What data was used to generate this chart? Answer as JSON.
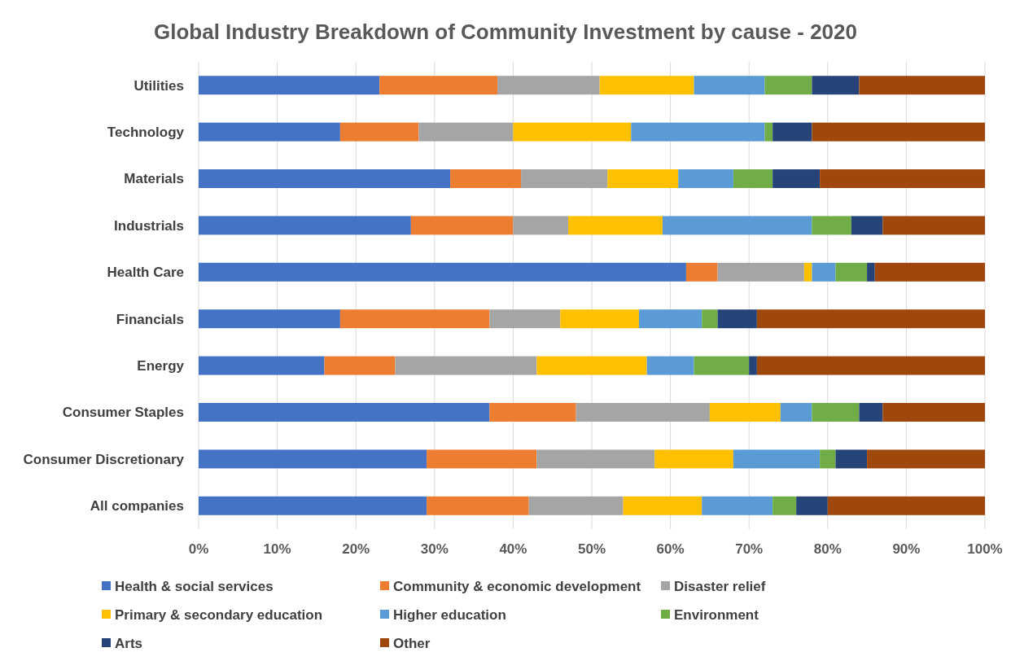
{
  "chart_data": {
    "type": "bar",
    "orientation": "horizontal",
    "stacked": true,
    "title": "Global Industry Breakdown of Community Investment by cause - 2020",
    "categories": [
      "Utilities",
      "Technology",
      "Materials",
      "Industrials",
      "Health Care",
      "Financials",
      "Energy",
      "Consumer Staples",
      "Consumer Discretionary",
      "All companies"
    ],
    "series": [
      {
        "name": "Health & social services",
        "color": "#4472c4",
        "values": [
          23,
          18,
          32,
          27,
          62,
          18,
          16,
          37,
          29,
          29
        ]
      },
      {
        "name": "Community & economic development",
        "color": "#ed7d31",
        "values": [
          15,
          10,
          9,
          13,
          4,
          19,
          9,
          11,
          14,
          13
        ]
      },
      {
        "name": "Disaster relief",
        "color": "#a5a5a5",
        "values": [
          13,
          12,
          11,
          7,
          11,
          9,
          18,
          17,
          15,
          12
        ]
      },
      {
        "name": "Primary & secondary education",
        "color": "#ffc000",
        "values": [
          12,
          15,
          9,
          12,
          1,
          10,
          14,
          9,
          10,
          10
        ]
      },
      {
        "name": "Higher education",
        "color": "#5b9bd5",
        "values": [
          9,
          17,
          7,
          19,
          3,
          8,
          6,
          4,
          11,
          9
        ]
      },
      {
        "name": "Environment",
        "color": "#70ad47",
        "values": [
          6,
          1,
          5,
          5,
          4,
          2,
          7,
          6,
          2,
          3
        ]
      },
      {
        "name": "Arts",
        "color": "#264478",
        "values": [
          6,
          5,
          6,
          4,
          1,
          5,
          1,
          3,
          4,
          4
        ]
      },
      {
        "name": "Other",
        "color": "#9e480e",
        "values": [
          16,
          22,
          21,
          13,
          14,
          29,
          29,
          13,
          15,
          20
        ]
      }
    ],
    "xlim": [
      0,
      100
    ],
    "xticks": [
      {
        "value": 0,
        "label": "0%"
      },
      {
        "value": 10,
        "label": "10%"
      },
      {
        "value": 20,
        "label": "20%"
      },
      {
        "value": 30,
        "label": "30%"
      },
      {
        "value": 40,
        "label": "40%"
      },
      {
        "value": 50,
        "label": "50%"
      },
      {
        "value": 60,
        "label": "60%"
      },
      {
        "value": 70,
        "label": "70%"
      },
      {
        "value": 80,
        "label": "80%"
      },
      {
        "value": 90,
        "label": "90%"
      },
      {
        "value": 100,
        "label": "100%"
      }
    ],
    "grid": "x",
    "legend": "bottom"
  }
}
